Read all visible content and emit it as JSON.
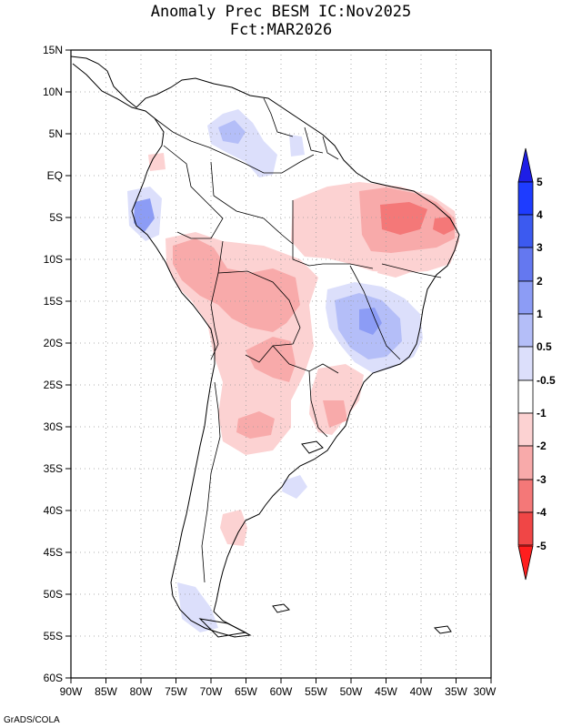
{
  "title": {
    "line1": "Anomaly Prec BESM IC:Nov2025",
    "line2": "Fct:MAR2026"
  },
  "credit": "GrADS/COLA",
  "map": {
    "region": "South America",
    "variable": "Precipitation anomaly",
    "lon_range": [
      -90,
      -30
    ],
    "lat_range": [
      -60,
      15
    ],
    "lat_labels": [
      "15N",
      "10N",
      "5N",
      "EQ",
      "5S",
      "10S",
      "15S",
      "20S",
      "25S",
      "30S",
      "35S",
      "40S",
      "45S",
      "50S",
      "55S",
      "60S"
    ],
    "lon_labels": [
      "90W",
      "85W",
      "80W",
      "75W",
      "70W",
      "65W",
      "60W",
      "55W",
      "50W",
      "45W",
      "40W",
      "35W",
      "30W"
    ]
  },
  "colorbar": {
    "levels": [
      "5",
      "4",
      "3",
      "2",
      "1",
      "0.5",
      "-0.5",
      "-1",
      "-2",
      "-3",
      "-4",
      "-5"
    ],
    "colors": [
      "#1e3cff",
      "#3c5af0",
      "#6478f0",
      "#8c9cf5",
      "#b4bef8",
      "#dcdffb",
      "#ffffff",
      "#fcd2d2",
      "#f8aaaa",
      "#f47878",
      "#f04646",
      "#ff1e1e"
    ],
    "top_arrow_color": "#1e1ee6",
    "bottom_arrow_color": "#ff1e1e"
  }
}
